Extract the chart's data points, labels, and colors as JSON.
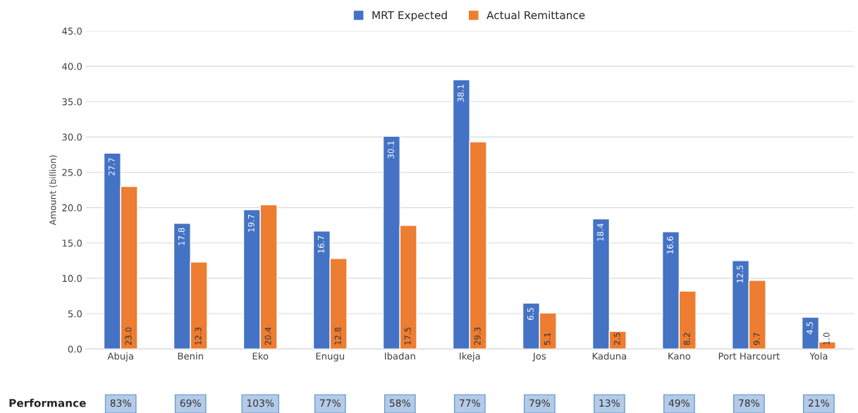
{
  "chart_data": {
    "type": "bar",
    "ylabel": "Amount (billion)",
    "categories": [
      "Abuja",
      "Benin",
      "Eko",
      "Enugu",
      "Ibadan",
      "Ikeja",
      "Jos",
      "Kaduna",
      "Kano",
      "Port Harcourt",
      "Yola"
    ],
    "series": [
      {
        "name": "MRT Expected",
        "color": "#4472c4",
        "values": [
          27.7,
          17.8,
          19.7,
          16.7,
          30.1,
          38.1,
          6.5,
          18.4,
          16.6,
          12.5,
          4.5
        ],
        "value_labels": [
          "27.7",
          "17.8",
          "19.7",
          "16.7",
          "30.1",
          "38.1",
          "6.5",
          "18.4",
          "16.6",
          "12.5",
          "4.5"
        ]
      },
      {
        "name": "Actual Remittance",
        "color": "#ed7d31",
        "values": [
          23.0,
          12.3,
          20.4,
          12.8,
          17.5,
          29.3,
          5.1,
          2.5,
          8.2,
          9.7,
          1.0
        ],
        "value_labels": [
          "23.0",
          "12.3",
          "20.4",
          "12.8",
          "17.5",
          "29.3",
          "5.1",
          "2.5",
          "8.2",
          "9.7",
          "1.0"
        ]
      }
    ],
    "ylim": [
      0,
      45
    ],
    "yticks": [
      {
        "value": 0,
        "label": "0.0"
      },
      {
        "value": 5,
        "label": "5.0"
      },
      {
        "value": 10,
        "label": "10.0"
      },
      {
        "value": 15,
        "label": "15.0"
      },
      {
        "value": 20,
        "label": "20.0"
      },
      {
        "value": 25,
        "label": "25.0"
      },
      {
        "value": 30,
        "label": "30.0"
      },
      {
        "value": 35,
        "label": "35.0"
      },
      {
        "value": 40,
        "label": "40.0"
      },
      {
        "value": 45,
        "label": "45.0"
      }
    ],
    "grid": "y",
    "legend": "top",
    "annotations": [
      "Performance",
      "83%",
      "69%",
      "103%",
      "77%",
      "58%",
      "77%",
      "79%",
      "13%",
      "49%",
      "78%",
      "21%"
    ]
  }
}
